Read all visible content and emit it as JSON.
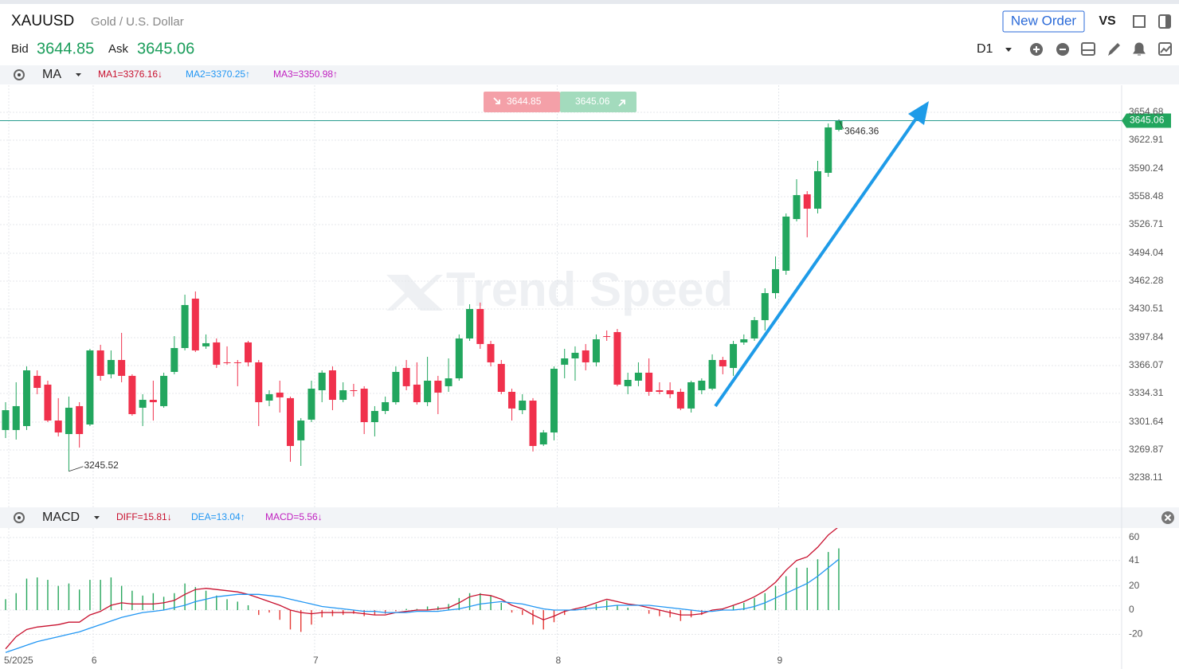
{
  "header": {
    "symbol": "XAUUSD",
    "name": "Gold / U.S. Dollar",
    "new_order": "New Order",
    "vs": "VS",
    "bid_label": "Bid",
    "bid": "3644.85",
    "ask_label": "Ask",
    "ask": "3645.06",
    "timeframe": "D1"
  },
  "watermark": "Trend Speed",
  "chart_data": [
    {
      "type": "candlestick",
      "indicator": "MA",
      "legend": [
        {
          "label": "MA1=3376.16↓",
          "color": "#c8102e"
        },
        {
          "label": "MA2=3370.25↑",
          "color": "#2196f3"
        },
        {
          "label": "MA3=3350.98↑",
          "color": "#c020c0"
        }
      ],
      "categories": [
        "5/2025",
        null,
        null,
        null,
        null,
        null,
        null,
        null,
        "6",
        null,
        null,
        null,
        null,
        null,
        null,
        null,
        null,
        null,
        null,
        null,
        null,
        null,
        null,
        null,
        null,
        null,
        null,
        null,
        null,
        "7",
        null,
        null,
        null,
        null,
        null,
        null,
        null,
        null,
        null,
        null,
        null,
        null,
        null,
        null,
        null,
        null,
        null,
        null,
        null,
        null,
        null,
        null,
        "8",
        null,
        null,
        null,
        null,
        null,
        null,
        null,
        null,
        null,
        null,
        null,
        null,
        null,
        null,
        null,
        null,
        null,
        null,
        null,
        null,
        "9",
        null,
        null,
        null,
        null,
        null,
        null
      ],
      "open": [
        3292.6,
        3292.6,
        3297.1,
        3354.3,
        3344.3,
        3303.4,
        3288.0,
        3319.8,
        3298.9,
        3383.3,
        3356.1,
        3372.4,
        3354.3,
        3318.0,
        3327.0,
        3319.8,
        3358.8,
        3386.0,
        3442.3,
        3387.9,
        3392.4,
        3369.7,
        3369.7,
        3392.4,
        3369.7,
        3326.1,
        3335.2,
        3328.9,
        3280.8,
        3304.4,
        3337.9,
        3360.6,
        3327.0,
        3337.9,
        3339.7,
        3301.6,
        3314.3,
        3324.3,
        3363.3,
        3344.3,
        3324.3,
        3348.8,
        3342.5,
        3351.5,
        3396.9,
        3430.5,
        3390.6,
        3367.9,
        3336.1,
        3315.2,
        3326.1,
        3276.2,
        3289.8,
        3367.0,
        3374.2,
        3383.3,
        3369.7,
        3399.6,
        3404.2,
        3342.5,
        3348.8,
        3357.9,
        3337.9,
        3337.9,
        3336.1,
        3317.1,
        3337.9,
        3339.7,
        3372.4,
        3363.3,
        3392.4,
        3396.9,
        3417.8,
        3448.6,
        3474.1,
        3533.0,
        3561.2,
        3544.8,
        3585.7,
        3634.7
      ],
      "high": [
        3324.3,
        3347.0,
        3365.1,
        3360.6,
        3348.8,
        3328.9,
        3330.7,
        3324.3,
        3385.1,
        3389.7,
        3383.3,
        3403.3,
        3356.1,
        3333.4,
        3348.8,
        3357.9,
        3399.6,
        3446.8,
        3450.5,
        3401.5,
        3396.9,
        3387.9,
        3372.4,
        3394.2,
        3372.4,
        3337.9,
        3348.8,
        3330.7,
        3306.2,
        3348.8,
        3360.6,
        3365.1,
        3347.0,
        3345.2,
        3342.5,
        3319.8,
        3330.7,
        3365.1,
        3372.4,
        3369.7,
        3376.0,
        3354.3,
        3374.2,
        3401.5,
        3435.9,
        3437.8,
        3394.2,
        3372.4,
        3339.7,
        3333.4,
        3328.9,
        3292.6,
        3365.1,
        3385.1,
        3387.9,
        3390.6,
        3401.5,
        3406.0,
        3407.8,
        3357.9,
        3369.7,
        3374.2,
        3347.0,
        3347.0,
        3339.7,
        3348.8,
        3351.5,
        3378.8,
        3376.0,
        3394.2,
        3401.5,
        3421.4,
        3454.1,
        3490.4,
        3539.4,
        3578.4,
        3564.8,
        3599.3,
        3641.9,
        3646.36
      ],
      "low": [
        3283.5,
        3281.7,
        3292.6,
        3333.4,
        3301.6,
        3285.3,
        3245.52,
        3272.6,
        3297.1,
        3348.8,
        3351.5,
        3347.0,
        3308.9,
        3297.1,
        3303.4,
        3318.0,
        3356.1,
        3383.3,
        3381.5,
        3385.1,
        3363.3,
        3367.0,
        3342.5,
        3365.1,
        3297.1,
        3319.8,
        3312.5,
        3256.4,
        3251.7,
        3301.6,
        3324.3,
        3315.2,
        3324.3,
        3330.7,
        3288.0,
        3285.3,
        3310.7,
        3321.6,
        3337.9,
        3321.6,
        3319.8,
        3310.7,
        3336.1,
        3348.8,
        3394.2,
        3385.1,
        3365.1,
        3333.4,
        3303.4,
        3310.7,
        3268.1,
        3274.4,
        3280.8,
        3351.5,
        3348.8,
        3360.6,
        3365.1,
        3394.2,
        3342.5,
        3333.4,
        3342.5,
        3331.6,
        3333.4,
        3328.9,
        3315.2,
        3312.5,
        3333.4,
        3337.9,
        3356.1,
        3354.3,
        3389.7,
        3394.2,
        3406.0,
        3442.3,
        3469.5,
        3530.3,
        3512.2,
        3539.4,
        3581.1,
        3632.9
      ],
      "close": [
        3315.2,
        3319.8,
        3360.6,
        3340.6,
        3303.4,
        3289.8,
        3318.0,
        3288.0,
        3383.3,
        3354.3,
        3372.4,
        3354.3,
        3310.7,
        3327.0,
        3324.3,
        3354.3,
        3386.0,
        3435.0,
        3383.3,
        3391.5,
        3367.0,
        3368.8,
        3368.8,
        3369.7,
        3324.3,
        3333.4,
        3329.8,
        3274.4,
        3303.4,
        3339.7,
        3357.9,
        3327.0,
        3337.9,
        3337.0,
        3301.6,
        3314.3,
        3324.3,
        3358.8,
        3342.5,
        3324.3,
        3348.8,
        3335.2,
        3351.5,
        3396.9,
        3430.5,
        3390.6,
        3369.7,
        3336.1,
        3317.1,
        3326.1,
        3274.4,
        3289.8,
        3362.4,
        3374.2,
        3380.6,
        3369.7,
        3396.0,
        3398.7,
        3344.3,
        3349.7,
        3357.9,
        3336.1,
        3336.1,
        3333.4,
        3317.1,
        3347.0,
        3348.8,
        3372.4,
        3365.1,
        3390.6,
        3396.0,
        3417.8,
        3448.6,
        3475.9,
        3535.8,
        3560.3,
        3544.8,
        3587.5,
        3637.4,
        3645.06
      ],
      "up_color": "#22a65e",
      "down_color": "#f0314c",
      "price_line_color": "#2a9d8f",
      "ylim": [
        3204.5,
        3685.5
      ],
      "yticks": [
        3654.68,
        3622.91,
        3590.24,
        3558.48,
        3526.71,
        3494.04,
        3462.28,
        3430.51,
        3397.84,
        3366.07,
        3334.31,
        3301.64,
        3269.87,
        3238.11
      ],
      "grid": true
    },
    {
      "type": "macd",
      "indicator": "MACD",
      "series": [
        {
          "name": "DIFF=15.81↓",
          "color": "#c8102e",
          "kind": "line",
          "values": [
            -32,
            -22,
            -16,
            -14,
            -13,
            -12,
            -10,
            -10,
            -4,
            -1,
            4,
            6,
            5,
            5,
            5,
            6,
            8,
            13,
            17,
            18,
            17,
            16,
            15,
            13,
            10,
            7,
            4,
            0,
            -2,
            -3,
            -2,
            -2,
            -2,
            -2,
            -3,
            -4,
            -4,
            -2,
            -1,
            0,
            0,
            1,
            2,
            6,
            11,
            13,
            12,
            9,
            4,
            1,
            -4,
            -8,
            -5,
            -1,
            1,
            3,
            6,
            9,
            7,
            5,
            4,
            2,
            0,
            -2,
            -4,
            -4,
            -3,
            0,
            1,
            4,
            7,
            11,
            16,
            23,
            33,
            41,
            44,
            52,
            62,
            69
          ]
        },
        {
          "name": "DEA=13.04↑",
          "color": "#2196f3",
          "kind": "line",
          "values": [
            -35,
            -32,
            -29,
            -26,
            -24,
            -22,
            -20,
            -18,
            -15,
            -12,
            -9,
            -6,
            -4,
            -2,
            -1,
            0,
            2,
            4,
            7,
            9,
            11,
            12,
            13,
            13,
            13,
            12,
            11,
            9,
            7,
            5,
            3,
            2,
            1,
            0,
            -1,
            -1,
            -2,
            -2,
            -2,
            -1,
            -1,
            -1,
            0,
            1,
            3,
            5,
            6,
            7,
            6,
            5,
            3,
            1,
            0,
            0,
            0,
            1,
            2,
            3,
            4,
            4,
            4,
            4,
            3,
            2,
            1,
            0,
            -1,
            -1,
            0,
            0,
            1,
            3,
            6,
            10,
            14,
            18,
            22,
            28,
            35,
            42
          ]
        },
        {
          "name": "MACD=5.56↓",
          "color": "#c020c0",
          "kind": "histogram",
          "up_color": "#26a65b",
          "down_color": "#e53935",
          "values": [
            9,
            14,
            26,
            27,
            25,
            20,
            22,
            17,
            25,
            25,
            27,
            20,
            16,
            12,
            14,
            11,
            14,
            22,
            19,
            16,
            12,
            9,
            7,
            4,
            -4,
            -2,
            -8,
            -16,
            -18,
            -12,
            -6,
            -5,
            -4,
            -3,
            -5,
            -4,
            -3,
            -1,
            1,
            1,
            3,
            3,
            5,
            10,
            14,
            14,
            12,
            6,
            -2,
            -4,
            -12,
            -16,
            -10,
            -4,
            1,
            3,
            5,
            8,
            4,
            2,
            0,
            -3,
            -5,
            -6,
            -9,
            -6,
            -4,
            0,
            1,
            4,
            6,
            10,
            14,
            20,
            28,
            35,
            35,
            42,
            48,
            51
          ]
        }
      ],
      "ylim": [
        -35.5,
        67.8
      ],
      "yticks": [
        60,
        41,
        20,
        0,
        -20
      ],
      "grid": true
    }
  ]
}
